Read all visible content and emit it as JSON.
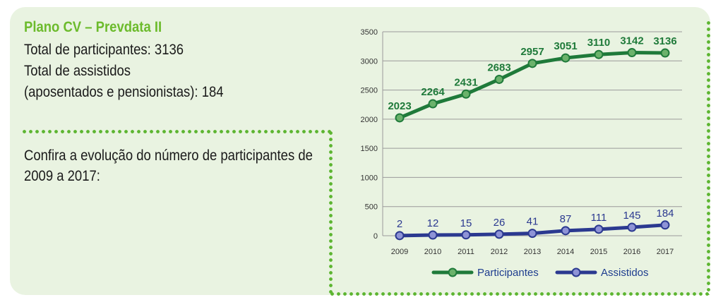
{
  "plan": {
    "title": "Plano CV – Prevdata II",
    "participants_label": "Total de participantes:",
    "participants_value": "3136",
    "assisted_label": "Total de assistidos",
    "assisted_note_label": "(aposentados e pensionistas):",
    "assisted_value": "184"
  },
  "intro_text": "Confira a evolução do número de participantes de 2009 a 2017:",
  "colors": {
    "participants": "#1f7a3a",
    "assisted": "#2b3990",
    "accent_green": "#6cbb2c",
    "dots": "#5db531"
  },
  "chart_data": {
    "type": "line",
    "categories": [
      "2009",
      "2010",
      "2011",
      "2012",
      "2013",
      "2014",
      "2015",
      "2016",
      "2017"
    ],
    "series": [
      {
        "name": "Participantes",
        "values": [
          2023,
          2264,
          2431,
          2683,
          2957,
          3051,
          3110,
          3142,
          3136
        ]
      },
      {
        "name": "Assistidos",
        "values": [
          2,
          12,
          15,
          26,
          41,
          87,
          111,
          145,
          184
        ]
      }
    ],
    "ylim": [
      0,
      3500
    ],
    "yticks": [
      0,
      500,
      1000,
      1500,
      2000,
      2500,
      3000,
      3500
    ],
    "grid": true,
    "legend": "bottom"
  }
}
